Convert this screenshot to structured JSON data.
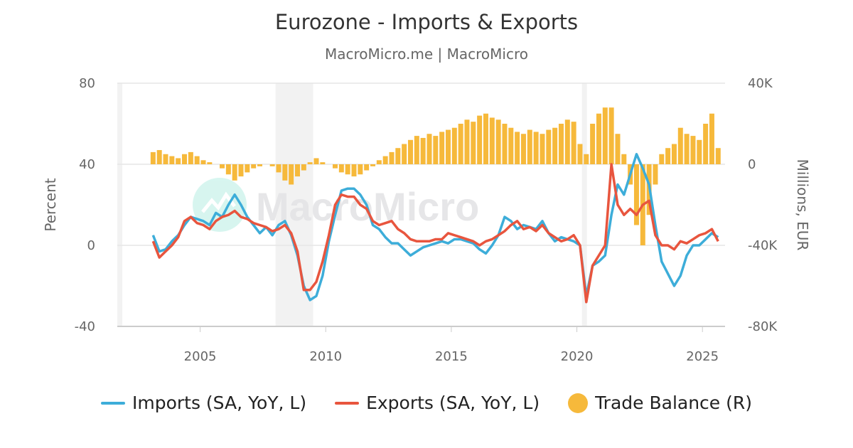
{
  "chart_data": {
    "type": "line+bar",
    "title": "Eurozone - Imports & Exports",
    "subtitle": "MacroMicro.me | MacroMicro",
    "watermark": "MacroMicro",
    "ylabel_left": "Percent",
    "ylabel_right": "Millions, EUR",
    "ylim_left": [
      -40,
      80
    ],
    "ylim_right": [
      -80000,
      40000
    ],
    "xlim": [
      2001.7,
      2025.9
    ],
    "left_ticks": [
      "80",
      "40",
      "0",
      "-40"
    ],
    "right_ticks": [
      "40K",
      "0",
      "-40K",
      "-80K"
    ],
    "x_ticks": [
      "2005",
      "2010",
      "2015",
      "2020",
      "2025"
    ],
    "grid": true,
    "legend_position": "bottom",
    "frequency": "quarterly (approximated)",
    "shaded_periods": [
      [
        2001.7,
        2001.9
      ],
      [
        2008.0,
        2009.5
      ],
      [
        2020.2,
        2020.4
      ]
    ],
    "series": [
      {
        "name": "Imports (SA, YoY, L)",
        "type": "line",
        "axis": "left",
        "color": "#3DADD9",
        "values": {
          "2003": [
            5,
            -3,
            -2,
            2
          ],
          "2004": [
            5,
            10,
            14,
            13
          ],
          "2005": [
            12,
            10,
            16,
            14
          ],
          "2006": [
            20,
            25,
            20,
            14
          ],
          "2007": [
            10,
            6,
            9,
            5
          ],
          "2008": [
            10,
            12,
            5,
            -5
          ],
          "2009": [
            -20,
            -27,
            -25,
            -15
          ],
          "2010": [
            2,
            15,
            27,
            28
          ],
          "2011": [
            28,
            25,
            20,
            10
          ],
          "2012": [
            8,
            4,
            1,
            1
          ],
          "2013": [
            -2,
            -5,
            -3,
            -1
          ],
          "2014": [
            0,
            1,
            2,
            1
          ],
          "2015": [
            3,
            3,
            2,
            1
          ],
          "2016": [
            -2,
            -4,
            0,
            5
          ],
          "2017": [
            14,
            12,
            8,
            10
          ],
          "2018": [
            9,
            8,
            12,
            6
          ],
          "2019": [
            2,
            4,
            3,
            2
          ],
          "2020": [
            0,
            -25,
            -10,
            -8
          ],
          "2021": [
            -5,
            15,
            30,
            25
          ],
          "2022": [
            35,
            45,
            38,
            30
          ],
          "2023": [
            10,
            -8,
            -14,
            -20
          ],
          "2024": [
            -15,
            -5,
            0,
            0
          ],
          "2025": [
            3,
            6,
            4
          ]
        }
      },
      {
        "name": "Exports (SA, YoY, L)",
        "type": "line",
        "axis": "left",
        "color": "#E8553E",
        "values": {
          "2003": [
            2,
            -6,
            -3,
            0
          ],
          "2004": [
            4,
            12,
            14,
            11
          ],
          "2005": [
            10,
            8,
            12,
            14
          ],
          "2006": [
            15,
            17,
            14,
            13
          ],
          "2007": [
            11,
            10,
            9,
            7
          ],
          "2008": [
            8,
            10,
            6,
            -3
          ],
          "2009": [
            -22,
            -22,
            -18,
            -8
          ],
          "2010": [
            5,
            20,
            25,
            24
          ],
          "2011": [
            24,
            20,
            18,
            12
          ],
          "2012": [
            10,
            11,
            12,
            8
          ],
          "2013": [
            6,
            3,
            2,
            2
          ],
          "2014": [
            2,
            3,
            3,
            6
          ],
          "2015": [
            5,
            4,
            3,
            2
          ],
          "2016": [
            0,
            2,
            3,
            5
          ],
          "2017": [
            7,
            10,
            12,
            8
          ],
          "2018": [
            9,
            7,
            10,
            6
          ],
          "2019": [
            4,
            2,
            3,
            5
          ],
          "2020": [
            0,
            -28,
            -10,
            -5
          ],
          "2021": [
            0,
            40,
            20,
            15
          ],
          "2022": [
            18,
            15,
            20,
            22
          ],
          "2023": [
            5,
            0,
            0,
            -2
          ],
          "2024": [
            2,
            1,
            3,
            5
          ],
          "2025": [
            6,
            8,
            2
          ]
        }
      },
      {
        "name": "Trade Balance (R)",
        "type": "bar",
        "axis": "right",
        "color": "#F6B93B",
        "values": {
          "2003": [
            6000,
            7000,
            5000,
            4000
          ],
          "2004": [
            3000,
            5000,
            6000,
            4000
          ],
          "2005": [
            2000,
            1000,
            0,
            -2000
          ],
          "2006": [
            -5000,
            -8000,
            -6000,
            -4000
          ],
          "2007": [
            -2000,
            -1000,
            0,
            -1000
          ],
          "2008": [
            -4000,
            -8000,
            -10000,
            -6000
          ],
          "2009": [
            -3000,
            1000,
            3000,
            1000
          ],
          "2010": [
            0,
            -2000,
            -4000,
            -5000
          ],
          "2011": [
            -6000,
            -5000,
            -3000,
            -1000
          ],
          "2012": [
            2000,
            4000,
            6000,
            8000
          ],
          "2013": [
            10000,
            12000,
            14000,
            13000
          ],
          "2014": [
            15000,
            14000,
            16000,
            17000
          ],
          "2015": [
            18000,
            20000,
            22000,
            21000
          ],
          "2016": [
            24000,
            25000,
            23000,
            22000
          ],
          "2017": [
            20000,
            18000,
            16000,
            15000
          ],
          "2018": [
            17000,
            16000,
            15000,
            17000
          ],
          "2019": [
            18000,
            20000,
            22000,
            21000
          ],
          "2020": [
            10000,
            5000,
            20000,
            25000
          ],
          "2021": [
            28000,
            28000,
            15000,
            5000
          ],
          "2022": [
            -10000,
            -30000,
            -40000,
            -25000
          ],
          "2023": [
            -10000,
            5000,
            8000,
            10000
          ],
          "2024": [
            18000,
            15000,
            14000,
            12000
          ],
          "2025": [
            20000,
            25000,
            8000
          ]
        }
      }
    ]
  }
}
